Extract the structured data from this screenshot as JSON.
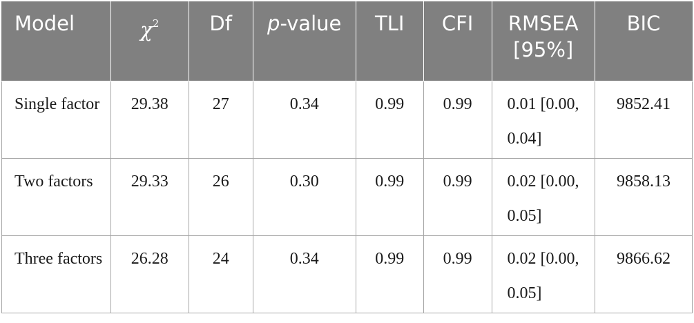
{
  "table": {
    "headers": {
      "model": "Model",
      "chi": "χ",
      "chi_sup": "2",
      "df": "Df",
      "p_italic": "p",
      "p_rest": "-value",
      "tli": "TLI",
      "cfi": "CFI",
      "rmsea": "RMSEA [95%]",
      "bic": "BIC"
    },
    "rows": [
      {
        "model": "Single factor",
        "chi2": "29.38",
        "df": "27",
        "p": "0.34",
        "tli": "0.99",
        "cfi": "0.99",
        "rmsea": "0.01 [0.00, 0.04]",
        "bic": "9852.41"
      },
      {
        "model": "Two factors",
        "chi2": "29.33",
        "df": "26",
        "p": "0.30",
        "tli": "0.99",
        "cfi": "0.99",
        "rmsea": "0.02 [0.00, 0.05]",
        "bic": "9858.13"
      },
      {
        "model": "Three factors",
        "chi2": "26.28",
        "df": "24",
        "p": "0.34",
        "tli": "0.99",
        "cfi": "0.99",
        "rmsea": "0.02 [0.00, 0.05]",
        "bic": "9866.62"
      }
    ]
  }
}
